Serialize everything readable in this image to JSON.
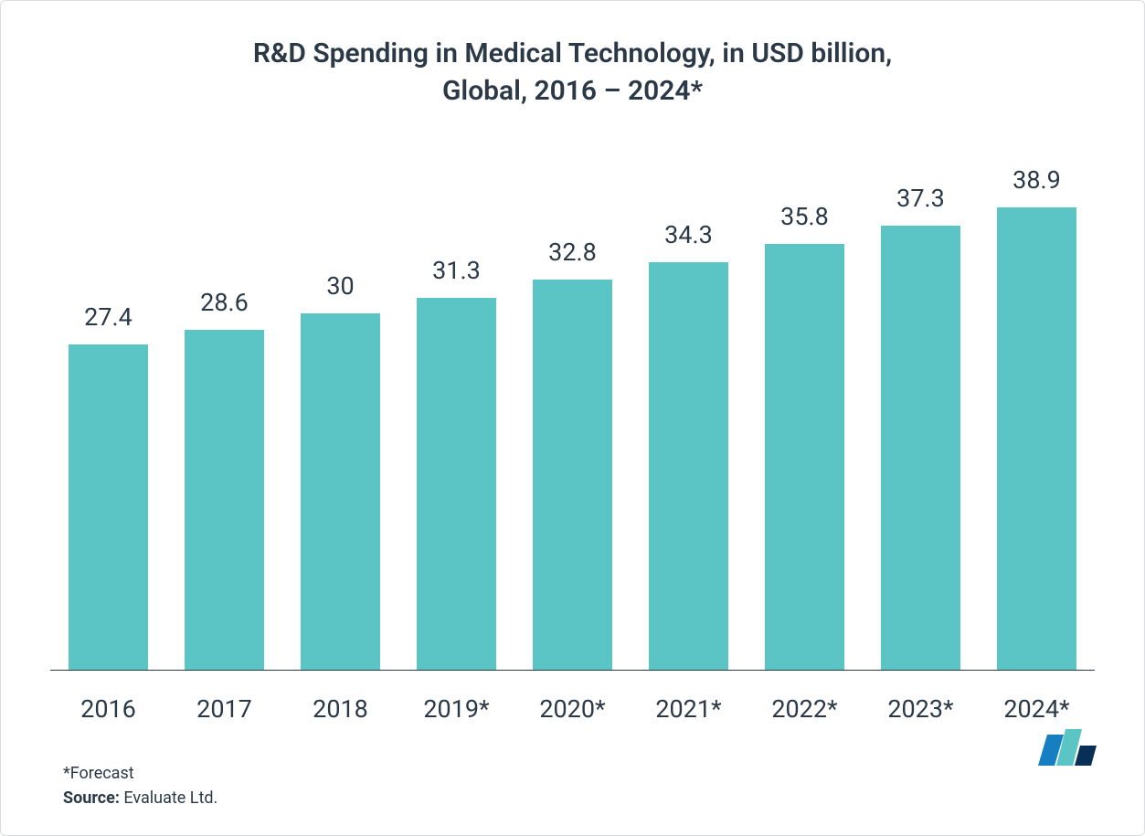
{
  "chart": {
    "type": "bar",
    "title": "R&D Spending in Medical Technology, in USD billion,\nGlobal, 2016 – 2024*",
    "title_color": "#2b3947",
    "title_fontsize": 30,
    "title_fontweight": 600,
    "categories": [
      "2016",
      "2017",
      "2018",
      "2019*",
      "2020*",
      "2021*",
      "2022*",
      "2023*",
      "2024*"
    ],
    "values": [
      27.4,
      28.6,
      30,
      31.3,
      32.8,
      34.3,
      35.8,
      37.3,
      38.9
    ],
    "value_labels": [
      "27.4",
      "28.6",
      "30",
      "31.3",
      "32.8",
      "34.3",
      "35.8",
      "37.3",
      "38.9"
    ],
    "bar_color": "#5bc4c4",
    "value_label_color": "#2b3947",
    "value_label_fontsize": 27,
    "xtick_color": "#2b3947",
    "xtick_fontsize": 27,
    "background_color": "#ffffff",
    "baseline_color": "#2b3947",
    "baseline_width": 1.5,
    "ylim_max": 44,
    "bar_width_pct": 68
  },
  "footer": {
    "footnote": "*Forecast",
    "source_label": "Source:",
    "source_value": "Evaluate Ltd.",
    "text_color": "#2b3947",
    "fontsize": 18
  },
  "logo": {
    "bar1_color": "#157fc1",
    "bar2_color": "#5bc4c4",
    "bar3_color": "#0a2f57"
  }
}
